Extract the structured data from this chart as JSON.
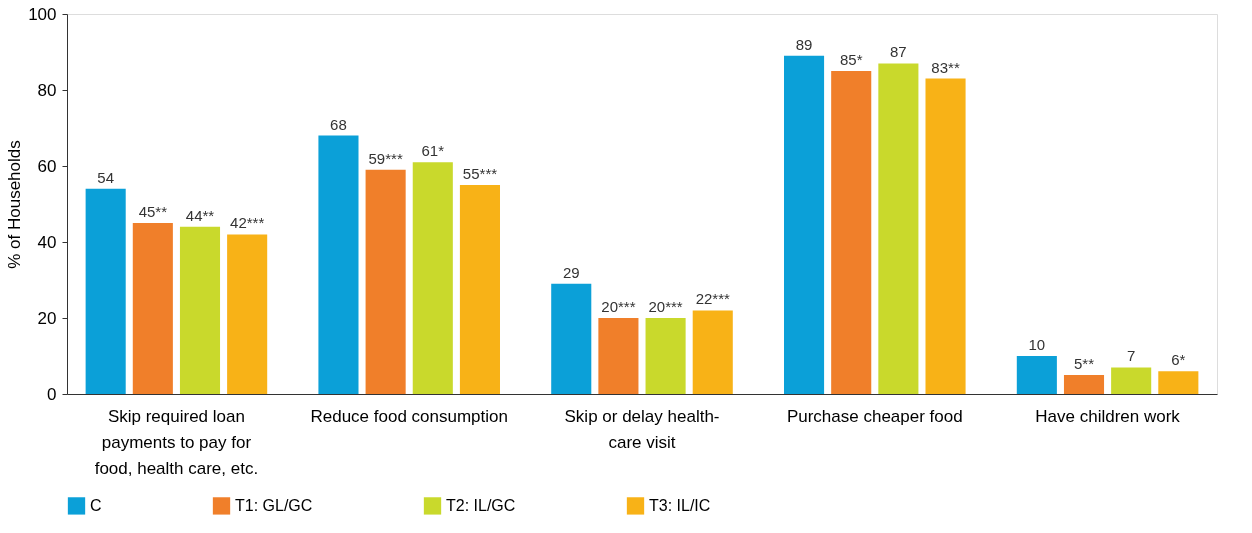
{
  "chart_data": {
    "type": "bar",
    "ylabel": "% of Households",
    "categories": [
      "Skip required loan payments to pay for food, health care, etc.",
      "Reduce food consumption",
      "Skip or delay health-care visit",
      "Purchase cheaper food",
      "Have children work"
    ],
    "series": [
      {
        "name": "C",
        "color": "#0ba0d8",
        "values": [
          54,
          68,
          29,
          89,
          10
        ],
        "value_labels": [
          "54",
          "68",
          "29",
          "89",
          "10"
        ]
      },
      {
        "name": "T1: GL/GC",
        "color": "#f07f2a",
        "values": [
          45,
          59,
          20,
          85,
          5
        ],
        "value_labels": [
          "45**",
          "59***",
          "20***",
          "85*",
          "5**"
        ]
      },
      {
        "name": "T2: IL/GC",
        "color": "#c9d92c",
        "values": [
          44,
          61,
          20,
          87,
          7
        ],
        "value_labels": [
          "44**",
          "61*",
          "20***",
          "87",
          "7"
        ]
      },
      {
        "name": "T3: IL/IC",
        "color": "#f8b217",
        "values": [
          42,
          55,
          22,
          83,
          6
        ],
        "value_labels": [
          "42***",
          "55***",
          "22***",
          "83**",
          "6*"
        ]
      }
    ],
    "ylim": [
      0,
      100
    ],
    "yticks": [
      0,
      20,
      40,
      60,
      80,
      100
    ],
    "grid": false,
    "legend": "bottom"
  }
}
